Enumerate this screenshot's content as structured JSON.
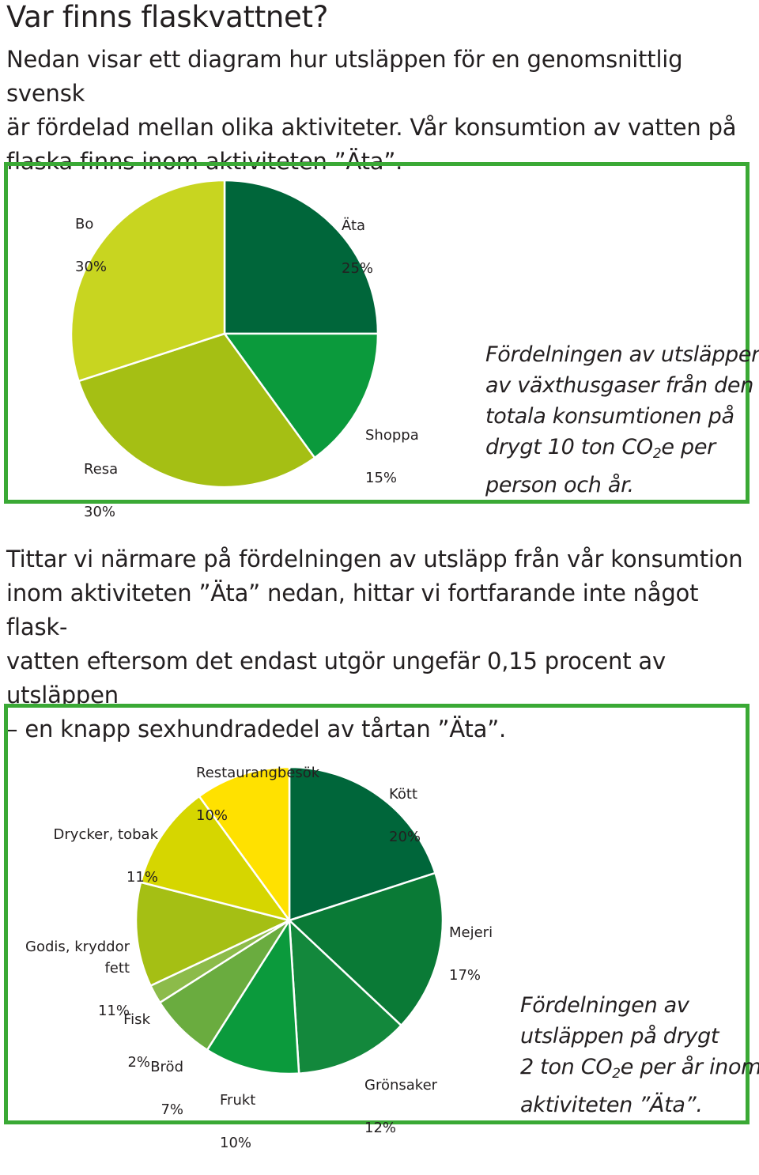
{
  "page": {
    "title": "Var finns flaskvattnet?",
    "intro": "Nedan visar ett diagram hur utsläppen för en genomsnittlig svensk\när fördelad mellan olika aktiviteter. Vår konsumtion av vatten på\nflaska finns inom aktiviteten ”Äta”.",
    "middle": "Tittar vi närmare på fördelningen av utsläpp från vår konsumtion\ninom aktiviteten ”Äta” nedan, hittar vi fortfarande inte något flask-\nvatten eftersom det endast utgör ungefär 0,15 procent av utsläppen\n– en knapp sexhundradedel av tårtan ”Äta”."
  },
  "notes": {
    "chart1": {
      "l1": "Fördelningen av utsläppen",
      "l2": "av växthusgaser från den",
      "l3": "totala konsumtionen på",
      "l4a": "drygt 10 ton CO",
      "l4sub": "2",
      "l4b": "e per",
      "l5": "person och år."
    },
    "chart2": {
      "l1": "Fördelningen av",
      "l2": "utsläppen på drygt",
      "l3a": "2 ton CO",
      "l3sub": "2",
      "l3b": "e per år inom",
      "l4": "aktiviteten ”Äta”."
    }
  },
  "chart_data": [
    {
      "type": "pie",
      "title": "",
      "unit": "%",
      "slices": [
        {
          "label": "Äta",
          "value": 25,
          "value_label": "25%",
          "color": "#00663a"
        },
        {
          "label": "Shoppa",
          "value": 15,
          "value_label": "15%",
          "color": "#0b9a3c"
        },
        {
          "label": "Resa",
          "value": 30,
          "value_label": "30%",
          "color": "#a5bf14"
        },
        {
          "label": "Bo",
          "value": 30,
          "value_label": "30%",
          "color": "#c8d520"
        }
      ]
    },
    {
      "type": "pie",
      "title": "",
      "unit": "%",
      "slices": [
        {
          "label": "Kött",
          "value": 20,
          "value_label": "20%",
          "color": "#00663a"
        },
        {
          "label": "Mejeri",
          "value": 17,
          "value_label": "17%",
          "color": "#0a7a36"
        },
        {
          "label": "Grönsaker",
          "value": 12,
          "value_label": "12%",
          "color": "#13883c"
        },
        {
          "label": "Frukt",
          "value": 10,
          "value_label": "10%",
          "color": "#0b9a3c"
        },
        {
          "label": "Bröd",
          "value": 7,
          "value_label": "7%",
          "color": "#6aac3f"
        },
        {
          "label": "Fisk",
          "value": 2,
          "value_label": "2%",
          "color": "#8cbb4a"
        },
        {
          "label": "Godis, kryddor fett",
          "value": 11,
          "value_label": "11%",
          "color": "#a5bf14"
        },
        {
          "label": "Drycker, tobak",
          "value": 11,
          "value_label": "11%",
          "color": "#d6d600"
        },
        {
          "label": "Restaurangbesök",
          "value": 10,
          "value_label": "10%",
          "color": "#ffe100"
        }
      ]
    }
  ]
}
